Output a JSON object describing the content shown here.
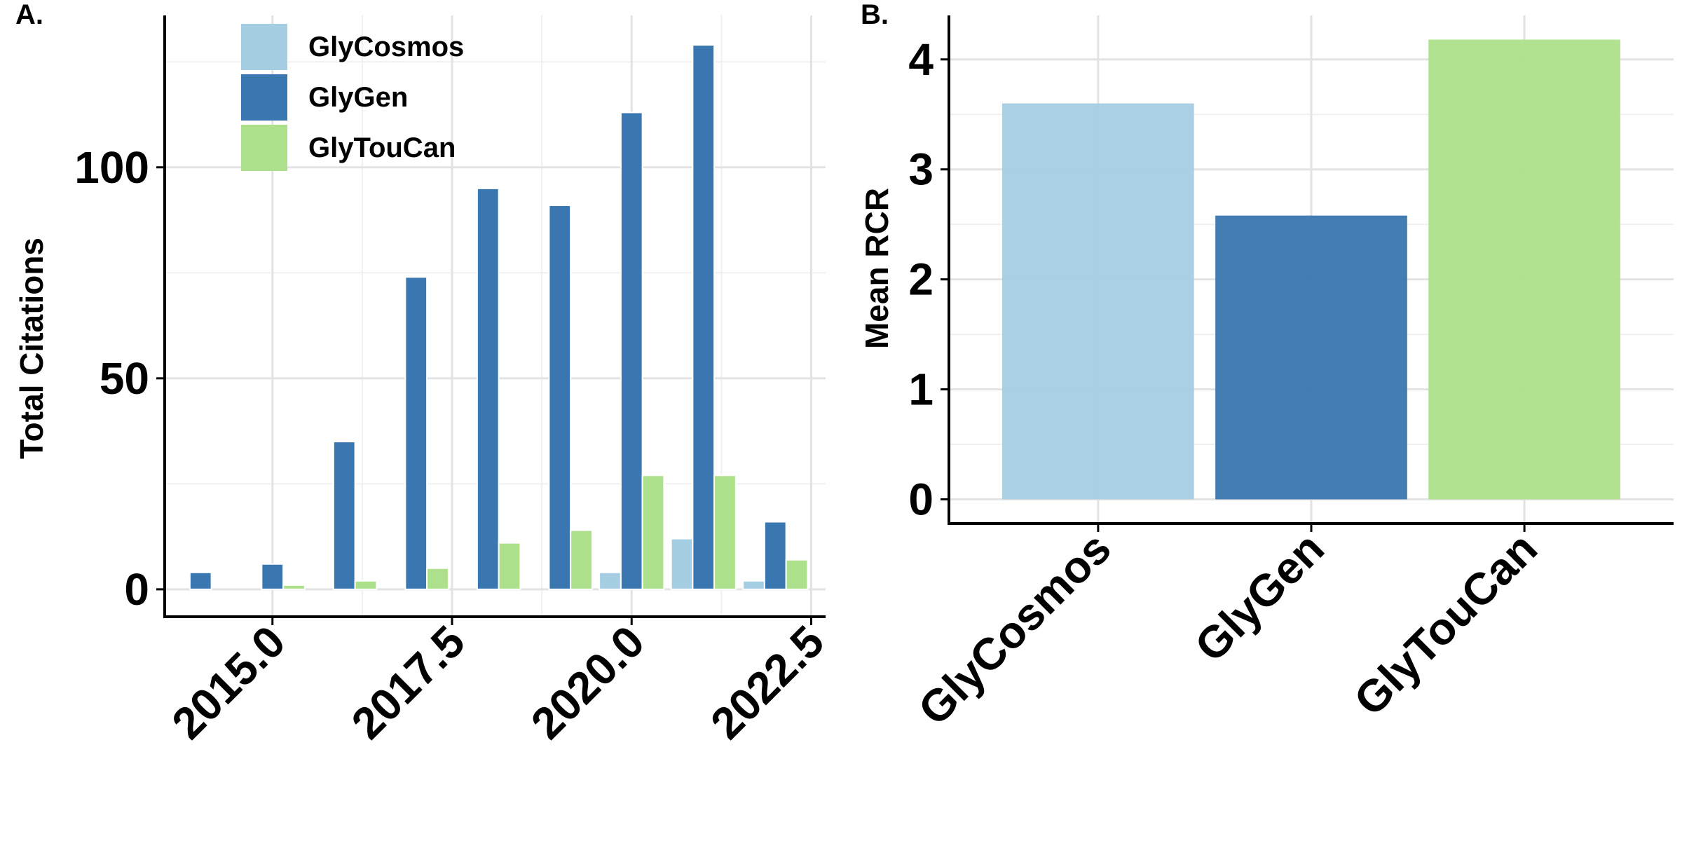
{
  "colors": {
    "GlyCosmos": "#a6cee3",
    "GlyGen": "#3a76b0",
    "GlyTouCan": "#ade08a"
  },
  "chart_data": [
    {
      "panel_label": "A.",
      "type": "bar",
      "grouped": true,
      "xlabel": "",
      "ylabel": "Total Citations",
      "xlim": [
        2013.5,
        2022.7
      ],
      "ylim": [
        -6.5,
        136
      ],
      "xticks": [
        2015.0,
        2017.5,
        2020.0,
        2022.5
      ],
      "xtick_labels": [
        "2015.0",
        "2017.5",
        "2020.0",
        "2022.5"
      ],
      "yticks": [
        0,
        50,
        100
      ],
      "ytick_labels": [
        "0",
        "50",
        "100"
      ],
      "x": [
        2014,
        2015,
        2016,
        2017,
        2018,
        2019,
        2020,
        2021,
        2022
      ],
      "series": [
        {
          "name": "GlyCosmos",
          "values": [
            0,
            0,
            0,
            0,
            0,
            0,
            4,
            12,
            2
          ]
        },
        {
          "name": "GlyGen",
          "values": [
            4,
            6,
            35,
            74,
            95,
            91,
            113,
            129,
            16
          ]
        },
        {
          "name": "GlyTouCan",
          "values": [
            0,
            1,
            2,
            5,
            11,
            14,
            27,
            27,
            7
          ]
        }
      ],
      "legend": {
        "placement": "top-left inside",
        "entries": [
          "GlyCosmos",
          "GlyGen",
          "GlyTouCan"
        ]
      },
      "grid": true
    },
    {
      "panel_label": "B.",
      "type": "bar",
      "xlabel": "",
      "ylabel": "Mean RCR",
      "categories": [
        "GlyCosmos",
        "GlyGen",
        "GlyTouCan"
      ],
      "values": [
        3.6,
        2.58,
        4.18
      ],
      "ylim": [
        -0.22,
        4.4
      ],
      "yticks": [
        0,
        1,
        2,
        3,
        4
      ],
      "ytick_labels": [
        "0",
        "1",
        "2",
        "3",
        "4"
      ],
      "grid": true
    }
  ]
}
